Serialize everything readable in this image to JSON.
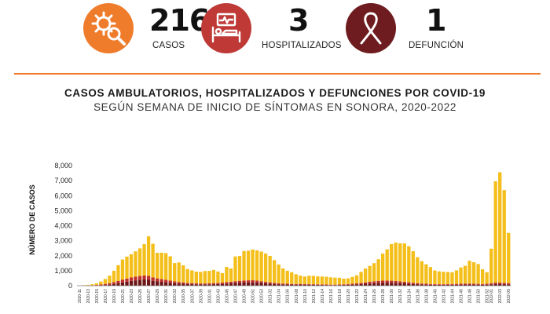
{
  "colors": {
    "orange": "#ee7c2b",
    "red": "#bf3a37",
    "maroon": "#6e1c1f",
    "divider": "#ee7c2b",
    "ambulatorios": "#f4bf1a",
    "hospitalizados": "#c0302a",
    "defunciones": "#6b1516"
  },
  "stats": [
    {
      "icon": "virus-search-icon",
      "value": "216",
      "label": "CASOS"
    },
    {
      "icon": "hospital-bed-icon",
      "value": "3",
      "label": "HOSPITALIZADOS"
    },
    {
      "icon": "ribbon-icon",
      "value": "1",
      "label": "DEFUNCIÓN"
    }
  ],
  "chart_data": {
    "type": "bar",
    "stacked": true,
    "title": "CASOS AMBULATORIOS, HOSPITALIZADOS Y DEFUNCIONES POR COVID-19",
    "subtitle": "SEGÚN SEMANA DE INICIO DE SÍNTOMAS EN SONORA, 2020-2022",
    "ylabel": "NÚMERO DE CASOS",
    "xlabel": "",
    "ylim": [
      0,
      8000
    ],
    "yticks": [
      "0",
      "1,000",
      "2,000",
      "3,000",
      "4,000",
      "5,000",
      "6,000",
      "7,000",
      "8,000"
    ],
    "grid": false,
    "categories": [
      "2020-11",
      "2020-12",
      "2020-13",
      "2020-14",
      "2020-15",
      "2020-16",
      "2020-17",
      "2020-18",
      "2020-19",
      "2020-20",
      "2020-21",
      "2020-22",
      "2020-23",
      "2020-24",
      "2020-25",
      "2020-26",
      "2020-27",
      "2020-28",
      "2020-29",
      "2020-30",
      "2020-31",
      "2020-32",
      "2020-33",
      "2020-34",
      "2020-35",
      "2020-36",
      "2020-37",
      "2020-38",
      "2020-39",
      "2020-40",
      "2020-41",
      "2020-42",
      "2020-43",
      "2020-44",
      "2020-45",
      "2020-46",
      "2020-47",
      "2020-48",
      "2020-49",
      "2020-50",
      "2020-51",
      "2020-52",
      "2020-53",
      "2021-01",
      "2021-02",
      "2021-03",
      "2021-04",
      "2021-05",
      "2021-06",
      "2021-07",
      "2021-08",
      "2021-09",
      "2021-10",
      "2021-11",
      "2021-12",
      "2021-13",
      "2021-14",
      "2021-15",
      "2021-16",
      "2021-17",
      "2021-18",
      "2021-19",
      "2021-20",
      "2021-21",
      "2021-22",
      "2021-23",
      "2021-24",
      "2021-25",
      "2021-26",
      "2021-27",
      "2021-28",
      "2021-29",
      "2021-30",
      "2021-31",
      "2021-32",
      "2021-33",
      "2021-34",
      "2021-35",
      "2021-36",
      "2021-37",
      "2021-38",
      "2021-39",
      "2021-40",
      "2021-41",
      "2021-42",
      "2021-43",
      "2021-44",
      "2021-45",
      "2021-46",
      "2021-47",
      "2021-48",
      "2021-49",
      "2021-50",
      "2021-51",
      "2021-52",
      "2022-01",
      "2022-02",
      "2022-03",
      "2022-04",
      "2022-05"
    ],
    "xtick_labels": [
      "2020-11",
      "2020-13",
      "2020-15",
      "2020-17",
      "2020-19",
      "2020-21",
      "2020-23",
      "2020-25",
      "2020-27",
      "2020-29",
      "2020-31",
      "2020-33",
      "2020-35",
      "2020-37",
      "2020-39",
      "2020-41",
      "2020-43",
      "2020-45",
      "2020-47",
      "2020-49",
      "2020-51",
      "2020-53",
      "2021-02",
      "2021-04",
      "2021-06",
      "2021-08",
      "2021-10",
      "2021-12",
      "2021-14",
      "2021-16",
      "2021-18",
      "2021-20",
      "2021-22",
      "2021-24",
      "2021-26",
      "2021-28",
      "2021-30",
      "2021-32",
      "2021-34",
      "2021-36",
      "2021-38",
      "2021-40",
      "2021-42",
      "2021-44",
      "2021-46",
      "2021-48",
      "2021-50",
      "2021-52",
      "2022-01",
      "2022-03",
      "2022-05"
    ],
    "series": [
      {
        "key": "defunciones",
        "values": [
          2,
          5,
          8,
          12,
          18,
          28,
          45,
          70,
          110,
          160,
          220,
          270,
          320,
          360,
          400,
          420,
          410,
          330,
          290,
          260,
          230,
          200,
          170,
          150,
          130,
          110,
          100,
          90,
          85,
          85,
          90,
          100,
          110,
          120,
          140,
          160,
          180,
          200,
          210,
          220,
          230,
          215,
          190,
          160,
          140,
          120,
          100,
          90,
          80,
          75,
          70,
          75,
          70,
          65,
          60,
          55,
          50,
          45,
          40,
          40,
          45,
          50,
          60,
          75,
          90,
          110,
          130,
          150,
          170,
          190,
          200,
          205,
          200,
          190,
          175,
          160,
          140,
          120,
          100,
          85,
          75,
          65,
          60,
          55,
          55,
          60,
          65,
          70,
          75,
          80,
          80,
          75,
          70,
          65,
          70,
          90,
          110,
          110,
          100,
          90
        ]
      },
      {
        "key": "hospitalizados",
        "values": [
          3,
          6,
          10,
          18,
          30,
          50,
          75,
          100,
          130,
          160,
          190,
          210,
          230,
          240,
          250,
          260,
          250,
          220,
          200,
          180,
          160,
          140,
          120,
          100,
          90,
          80,
          75,
          70,
          65,
          65,
          70,
          75,
          80,
          90,
          100,
          110,
          120,
          130,
          140,
          140,
          135,
          125,
          110,
          95,
          85,
          75,
          65,
          55,
          50,
          45,
          45,
          45,
          45,
          40,
          40,
          38,
          35,
          33,
          30,
          30,
          35,
          40,
          45,
          55,
          65,
          80,
          95,
          110,
          125,
          135,
          140,
          140,
          135,
          125,
          115,
          100,
          90,
          80,
          70,
          60,
          55,
          50,
          45,
          45,
          45,
          45,
          50,
          55,
          60,
          65,
          65,
          60,
          55,
          50,
          60,
          80,
          100,
          100,
          90,
          80
        ]
      },
      {
        "key": "ambulatorios",
        "values": [
          15,
          25,
          40,
          70,
          110,
          200,
          330,
          500,
          760,
          1050,
          1340,
          1460,
          1550,
          1690,
          1840,
          2090,
          2630,
          2250,
          1700,
          1760,
          1780,
          1620,
          1220,
          1300,
          1140,
          920,
          850,
          780,
          770,
          830,
          830,
          880,
          760,
          630,
          1010,
          880,
          1650,
          1650,
          1960,
          1980,
          2050,
          2020,
          1980,
          1890,
          1760,
          1510,
          1250,
          1010,
          870,
          780,
          650,
          560,
          500,
          560,
          560,
          530,
          530,
          520,
          490,
          470,
          450,
          380,
          390,
          460,
          540,
          730,
          920,
          1060,
          1210,
          1440,
          1800,
          2080,
          2440,
          2560,
          2540,
          2560,
          2400,
          2100,
          1730,
          1490,
          1300,
          1130,
          910,
          860,
          830,
          810,
          780,
          900,
          1080,
          1180,
          1520,
          1430,
          1320,
          980,
          770,
          2300,
          6750,
          7350,
          6180,
          3350
        ]
      }
    ]
  }
}
